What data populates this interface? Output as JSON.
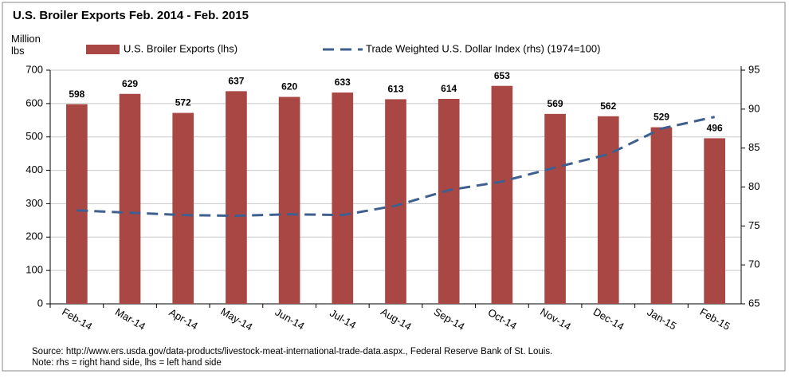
{
  "chart_data": {
    "type": "bar_line",
    "title": "U.S. Broiler Exports Feb. 2014 - Feb. 2015",
    "y_label": "Million lbs",
    "categories": [
      "Feb-14",
      "Mar-14",
      "Apr-14",
      "May-14",
      "Jun-14",
      "Jul-14",
      "Aug-14",
      "Sep-14",
      "Oct-14",
      "Nov-14",
      "Dec-14",
      "Jan-15",
      "Feb-15"
    ],
    "series": [
      {
        "name": "U.S. Broiler Exports (lhs)",
        "type": "bar",
        "color": "#a94744",
        "values": [
          598,
          629,
          572,
          637,
          620,
          633,
          613,
          614,
          653,
          569,
          562,
          529,
          496
        ]
      },
      {
        "name": "Trade Weighted U.S. Dollar Index (rhs) (1974=100)",
        "type": "line",
        "axis": "y2",
        "color": "#3f5f8e",
        "values": [
          77.0,
          76.7,
          76.4,
          76.3,
          76.5,
          76.4,
          77.6,
          79.6,
          80.7,
          82.5,
          84.2,
          87.5,
          89.0
        ]
      }
    ],
    "ylim": [
      0,
      700
    ],
    "yticks": [
      0,
      100,
      200,
      300,
      400,
      500,
      600,
      700
    ],
    "y2lim": [
      65,
      95
    ],
    "y2ticks": [
      65,
      70,
      75,
      80,
      85,
      90,
      95
    ],
    "grid": true,
    "source": "Source: http://www.ers.usda.gov/data-products/livestock-meat-international-trade-data.aspx., Federal Reserve Bank of St. Louis.",
    "note": "Note: rhs = right hand side, lhs = left hand side"
  }
}
